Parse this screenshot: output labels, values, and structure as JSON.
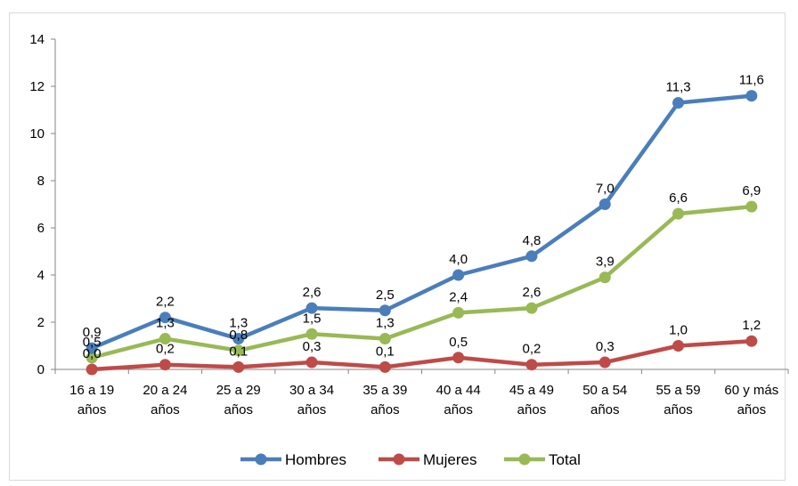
{
  "chart_data": {
    "type": "line",
    "title": "",
    "xlabel": "",
    "ylabel": "",
    "ylim": [
      0,
      14
    ],
    "yticks": [
      "0",
      "2",
      "4",
      "6",
      "8",
      "10",
      "12",
      "14"
    ],
    "grid": false,
    "legend_position": "bottom",
    "categories": [
      [
        "16 a 19",
        "años"
      ],
      [
        "20 a 24",
        "años"
      ],
      [
        "25 a 29",
        "años"
      ],
      [
        "30 a 34",
        "años"
      ],
      [
        "35 a 39",
        "años"
      ],
      [
        "40 a 44",
        "años"
      ],
      [
        "45 a 49",
        "años"
      ],
      [
        "50 a 54",
        "años"
      ],
      [
        "55 a 59",
        "años"
      ],
      [
        "60 y más",
        "años"
      ]
    ],
    "series": [
      {
        "name": "Hombres",
        "color": "#4a7ebb",
        "values": [
          0.9,
          2.2,
          1.3,
          2.6,
          2.5,
          4.0,
          4.8,
          7.0,
          11.3,
          11.6
        ],
        "labels": [
          "0,9",
          "2,2",
          "1,3",
          "2,6",
          "2,5",
          "4,0",
          "4,8",
          "7,0",
          "11,3",
          "11,6"
        ]
      },
      {
        "name": "Mujeres",
        "color": "#be4b48",
        "values": [
          0.0,
          0.2,
          0.1,
          0.3,
          0.1,
          0.5,
          0.2,
          0.3,
          1.0,
          1.2
        ],
        "labels": [
          "0,0",
          "0,2",
          "0,1",
          "0,3",
          "0,1",
          "0,5",
          "0,2",
          "0,3",
          "1,0",
          "1,2"
        ]
      },
      {
        "name": "Total",
        "color": "#98b954",
        "values": [
          0.5,
          1.3,
          0.8,
          1.5,
          1.3,
          2.4,
          2.6,
          3.9,
          6.6,
          6.9
        ],
        "labels": [
          "0,5",
          "1,3",
          "0,8",
          "1,5",
          "1,3",
          "2,4",
          "2,6",
          "3,9",
          "6,6",
          "6,9"
        ]
      }
    ]
  }
}
